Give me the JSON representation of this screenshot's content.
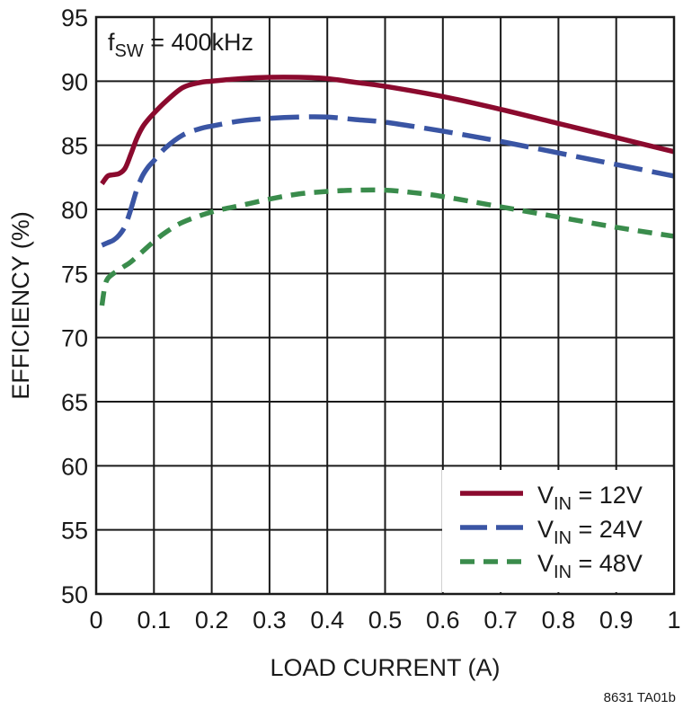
{
  "chart_data": {
    "type": "line",
    "title": "",
    "xlabel": "LOAD CURRENT (A)",
    "ylabel": "EFFICIENCY (%)",
    "xlim": [
      0,
      1
    ],
    "ylim": [
      50,
      95
    ],
    "x_ticks": [
      "0",
      "0.1",
      "0.2",
      "0.3",
      "0.4",
      "0.5",
      "0.6",
      "0.7",
      "0.8",
      "0.9",
      "1"
    ],
    "y_ticks": [
      "50",
      "55",
      "60",
      "65",
      "70",
      "75",
      "80",
      "85",
      "90",
      "95"
    ],
    "grid": true,
    "legend_position": "bottom-right",
    "annotation": {
      "main": "f",
      "sub": "SW",
      "rest": " = 400kHz"
    },
    "footnote": "8631 TA01b",
    "series": [
      {
        "name": "VIN = 12V",
        "label_main": "V",
        "label_sub": "IN",
        "label_rest": " = 12V",
        "color": "#8b0a2e",
        "dash": "solid",
        "x": [
          0.01,
          0.02,
          0.03,
          0.04,
          0.05,
          0.06,
          0.07,
          0.08,
          0.09,
          0.1,
          0.12,
          0.15,
          0.18,
          0.2,
          0.25,
          0.3,
          0.35,
          0.4,
          0.45,
          0.5,
          0.6,
          0.7,
          0.8,
          0.9,
          1.0
        ],
        "y": [
          82.0,
          82.6,
          82.7,
          82.8,
          83.2,
          84.3,
          85.5,
          86.4,
          87.0,
          87.5,
          88.4,
          89.5,
          89.9,
          90.0,
          90.2,
          90.3,
          90.3,
          90.2,
          89.9,
          89.6,
          88.8,
          87.8,
          86.7,
          85.6,
          84.5
        ]
      },
      {
        "name": "VIN = 24V",
        "label_main": "V",
        "label_sub": "IN",
        "label_rest": " = 24V",
        "color": "#3a55a4",
        "dash": "long",
        "x": [
          0.01,
          0.02,
          0.03,
          0.04,
          0.05,
          0.06,
          0.07,
          0.08,
          0.09,
          0.1,
          0.12,
          0.15,
          0.18,
          0.2,
          0.25,
          0.3,
          0.35,
          0.4,
          0.45,
          0.5,
          0.6,
          0.7,
          0.8,
          0.9,
          1.0
        ],
        "y": [
          77.2,
          77.4,
          77.6,
          78.0,
          78.7,
          80.0,
          81.5,
          82.6,
          83.3,
          83.8,
          84.8,
          85.8,
          86.3,
          86.5,
          86.9,
          87.1,
          87.2,
          87.2,
          87.0,
          86.8,
          86.1,
          85.3,
          84.4,
          83.5,
          82.6
        ]
      },
      {
        "name": "VIN = 48V",
        "label_main": "V",
        "label_sub": "IN",
        "label_rest": " = 48V",
        "color": "#3a8c4c",
        "dash": "short",
        "x": [
          0.01,
          0.015,
          0.02,
          0.03,
          0.04,
          0.05,
          0.06,
          0.08,
          0.1,
          0.12,
          0.15,
          0.2,
          0.25,
          0.3,
          0.35,
          0.4,
          0.45,
          0.5,
          0.55,
          0.6,
          0.7,
          0.8,
          0.9,
          1.0
        ],
        "y": [
          72.5,
          74.0,
          74.6,
          75.0,
          75.3,
          75.6,
          75.9,
          76.7,
          77.5,
          78.2,
          79.0,
          79.8,
          80.3,
          80.8,
          81.2,
          81.4,
          81.5,
          81.5,
          81.3,
          81.0,
          80.2,
          79.4,
          78.6,
          77.9
        ]
      }
    ]
  }
}
